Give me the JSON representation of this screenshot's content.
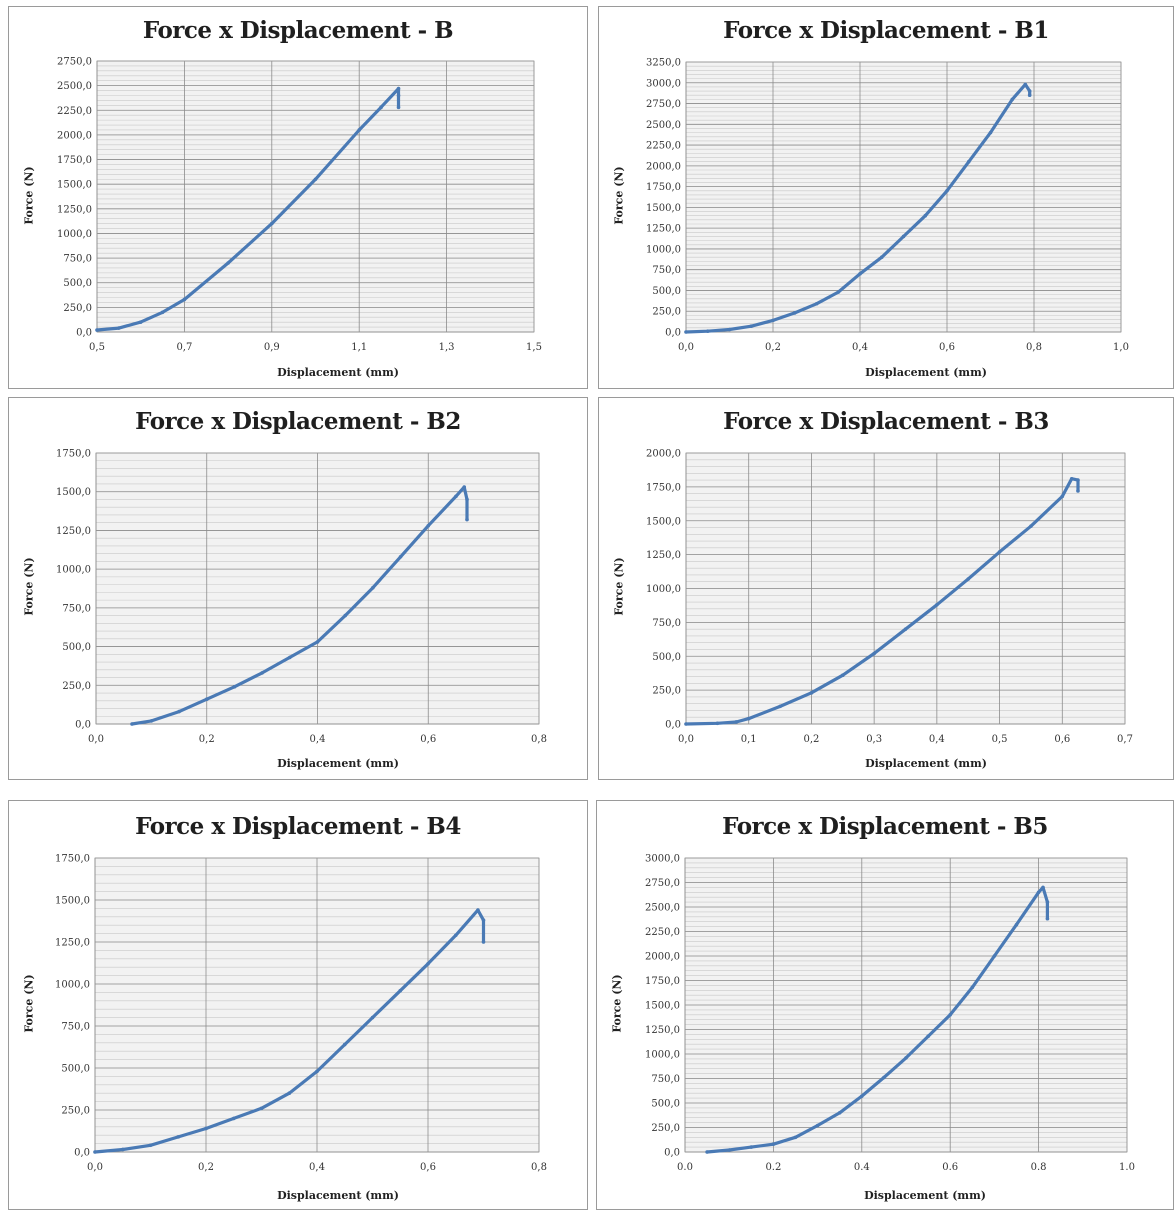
{
  "colors": {
    "series": "#4a7ab5",
    "major_grid": "#8c8c8c",
    "minor_grid": "#c8c8c8",
    "plot_bg": "#f2f2f2"
  },
  "chart_data": [
    {
      "type": "line",
      "title": "Force x Displacement - B",
      "xlabel": "Displacement (mm)",
      "ylabel": "Force (N)",
      "xlim": [
        0.5,
        1.5
      ],
      "ylim": [
        0,
        2750
      ],
      "xticks": [
        0.5,
        0.7,
        0.9,
        1.1,
        1.3,
        1.5
      ],
      "xtick_labels": [
        "0,5",
        "0,7",
        "0,9",
        "1,1",
        "1,3",
        "1,5"
      ],
      "yticks": [
        0,
        250,
        500,
        750,
        1000,
        1250,
        1500,
        1750,
        2000,
        2250,
        2500,
        2750
      ],
      "ytick_labels": [
        "0,0",
        "250,0",
        "500,0",
        "750,0",
        "1000,0",
        "1250,0",
        "1500,0",
        "1750,0",
        "2000,0",
        "2250,0",
        "2500,0",
        "2750,0"
      ],
      "grid": true,
      "series": [
        {
          "x": [
            0.5,
            0.55,
            0.6,
            0.65,
            0.7,
            0.8,
            0.9,
            1.0,
            1.1,
            1.15,
            1.19,
            1.19,
            1.19
          ],
          "y": [
            20,
            40,
            100,
            200,
            330,
            700,
            1100,
            1550,
            2050,
            2280,
            2470,
            2400,
            2280
          ]
        }
      ]
    },
    {
      "type": "line",
      "title": "Force x Displacement - B1",
      "xlabel": "Displacement (mm)",
      "ylabel": "Force (N)",
      "xlim": [
        0,
        1.0
      ],
      "ylim": [
        0,
        3250
      ],
      "xticks": [
        0,
        0.2,
        0.4,
        0.6,
        0.8,
        1.0
      ],
      "xtick_labels": [
        "0,0",
        "0,2",
        "0,4",
        "0,6",
        "0,8",
        "1,0"
      ],
      "yticks": [
        0,
        250,
        500,
        750,
        1000,
        1250,
        1500,
        1750,
        2000,
        2250,
        2500,
        2750,
        3000,
        3250
      ],
      "ytick_labels": [
        "0,0",
        "250,0",
        "500,0",
        "750,0",
        "1000,0",
        "1250,0",
        "1500,0",
        "1750,0",
        "2000,0",
        "2250,0",
        "2500,0",
        "2750,0",
        "3000,0",
        "3250,0"
      ],
      "grid": true,
      "series": [
        {
          "x": [
            0.0,
            0.05,
            0.1,
            0.15,
            0.2,
            0.25,
            0.3,
            0.35,
            0.4,
            0.45,
            0.5,
            0.55,
            0.6,
            0.65,
            0.7,
            0.75,
            0.78,
            0.79,
            0.79
          ],
          "y": [
            0,
            10,
            30,
            70,
            140,
            230,
            340,
            480,
            700,
            900,
            1150,
            1400,
            1700,
            2050,
            2400,
            2800,
            2980,
            2900,
            2850
          ]
        }
      ]
    },
    {
      "type": "line",
      "title": "Force x Displacement - B2",
      "xlabel": "Displacement (mm)",
      "ylabel": "Force (N)",
      "xlim": [
        0,
        0.8
      ],
      "ylim": [
        0,
        1750
      ],
      "xticks": [
        0,
        0.2,
        0.4,
        0.6,
        0.8
      ],
      "xtick_labels": [
        "0,0",
        "0,2",
        "0,4",
        "0,6",
        "0,8"
      ],
      "yticks": [
        0,
        250,
        500,
        750,
        1000,
        1250,
        1500,
        1750
      ],
      "ytick_labels": [
        "0,0",
        "250,0",
        "500,0",
        "750,0",
        "1000,0",
        "1250,0",
        "1500,0",
        "1750,0"
      ],
      "grid": true,
      "series": [
        {
          "x": [
            0.065,
            0.1,
            0.15,
            0.2,
            0.25,
            0.3,
            0.35,
            0.4,
            0.45,
            0.5,
            0.55,
            0.6,
            0.65,
            0.665,
            0.67,
            0.67
          ],
          "y": [
            0,
            20,
            80,
            160,
            240,
            330,
            430,
            530,
            700,
            880,
            1080,
            1280,
            1470,
            1530,
            1450,
            1320
          ]
        }
      ]
    },
    {
      "type": "line",
      "title": "Force x Displacement - B3",
      "xlabel": "Displacement (mm)",
      "ylabel": "Force (N)",
      "xlim": [
        0,
        0.7
      ],
      "ylim": [
        0,
        2000
      ],
      "xticks": [
        0,
        0.1,
        0.2,
        0.3,
        0.4,
        0.5,
        0.6,
        0.7
      ],
      "xtick_labels": [
        "0,0",
        "0,1",
        "0,2",
        "0,3",
        "0,4",
        "0,5",
        "0,6",
        "0,7"
      ],
      "yticks": [
        0,
        250,
        500,
        750,
        1000,
        1250,
        1500,
        1750,
        2000
      ],
      "ytick_labels": [
        "0,0",
        "250,0",
        "500,0",
        "750,0",
        "1000,0",
        "1250,0",
        "1500,0",
        "1750,0",
        "2000,0"
      ],
      "grid": true,
      "series": [
        {
          "x": [
            0.0,
            0.05,
            0.08,
            0.1,
            0.15,
            0.2,
            0.25,
            0.3,
            0.35,
            0.4,
            0.45,
            0.5,
            0.55,
            0.6,
            0.615,
            0.625,
            0.625
          ],
          "y": [
            0,
            5,
            15,
            40,
            130,
            230,
            360,
            520,
            700,
            880,
            1070,
            1270,
            1460,
            1680,
            1810,
            1800,
            1720
          ]
        }
      ]
    },
    {
      "type": "line",
      "title": "Force x Displacement - B4",
      "xlabel": "Displacement (mm)",
      "ylabel": "Force (N)",
      "xlim": [
        0,
        0.8
      ],
      "ylim": [
        0,
        1750
      ],
      "xticks": [
        0,
        0.2,
        0.4,
        0.6,
        0.8
      ],
      "xtick_labels": [
        "0,0",
        "0,2",
        "0,4",
        "0,6",
        "0,8"
      ],
      "yticks": [
        0,
        250,
        500,
        750,
        1000,
        1250,
        1500,
        1750
      ],
      "ytick_labels": [
        "0,0",
        "250,0",
        "500,0",
        "750,0",
        "1000,0",
        "1250,0",
        "1500,0",
        "1750,0"
      ],
      "grid": true,
      "series": [
        {
          "x": [
            0.0,
            0.05,
            0.1,
            0.15,
            0.2,
            0.25,
            0.3,
            0.35,
            0.4,
            0.45,
            0.5,
            0.55,
            0.6,
            0.65,
            0.69,
            0.7,
            0.7
          ],
          "y": [
            0,
            15,
            40,
            90,
            140,
            200,
            260,
            350,
            480,
            640,
            800,
            960,
            1120,
            1290,
            1440,
            1380,
            1250
          ]
        }
      ]
    },
    {
      "type": "line",
      "title": "Force x Displacement - B5",
      "xlabel": "Displacement (mm)",
      "ylabel": "Force (N)",
      "xlim": [
        0,
        1.0
      ],
      "ylim": [
        0,
        3000
      ],
      "xticks": [
        0,
        0.2,
        0.4,
        0.6,
        0.8,
        1.0
      ],
      "xtick_labels": [
        "0.0",
        "0.2",
        "0.4",
        "0.6",
        "0.8",
        "1.0"
      ],
      "yticks": [
        0,
        250,
        500,
        750,
        1000,
        1250,
        1500,
        1750,
        2000,
        2250,
        2500,
        2750,
        3000
      ],
      "ytick_labels": [
        "0,0",
        "250,0",
        "500,0",
        "750,0",
        "1000,0",
        "1250,0",
        "1500,0",
        "1750,0",
        "2000,0",
        "2250,0",
        "2500,0",
        "2750,0",
        "3000,0"
      ],
      "grid": true,
      "series": [
        {
          "x": [
            0.05,
            0.1,
            0.15,
            0.2,
            0.25,
            0.3,
            0.35,
            0.4,
            0.45,
            0.5,
            0.55,
            0.6,
            0.65,
            0.7,
            0.75,
            0.8,
            0.81,
            0.82,
            0.82
          ],
          "y": [
            0,
            20,
            50,
            80,
            150,
            270,
            400,
            570,
            760,
            960,
            1180,
            1400,
            1680,
            2000,
            2320,
            2650,
            2700,
            2550,
            2380
          ]
        }
      ]
    }
  ]
}
